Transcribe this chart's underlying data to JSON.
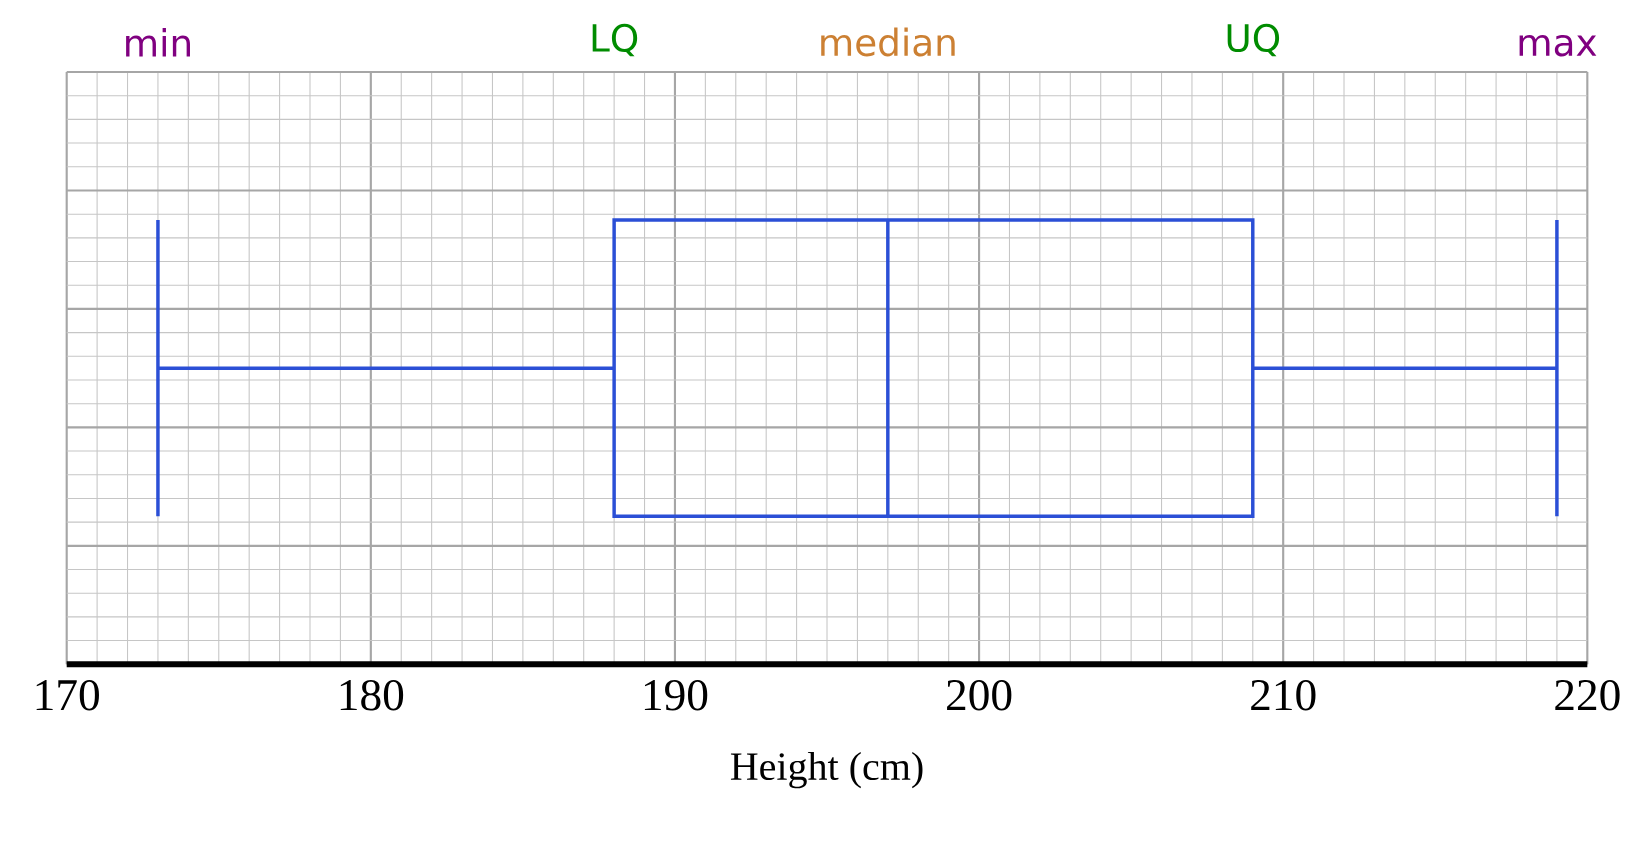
{
  "chart_data": {
    "type": "box",
    "orientation": "horizontal",
    "categories": [
      null
    ],
    "boxes": [
      {
        "low": 173,
        "q1": 188,
        "median": 197,
        "q3": 209,
        "high": 219
      }
    ],
    "color": "#2b4fd6",
    "xlim": [
      170,
      220
    ],
    "xticks": [
      170,
      180,
      190,
      200,
      210,
      220
    ],
    "xlabel": "Height (cm)",
    "grid": true,
    "tick_labels": "x",
    "annotations": [
      "min",
      "LQ",
      "median",
      "UQ",
      "max"
    ]
  }
}
